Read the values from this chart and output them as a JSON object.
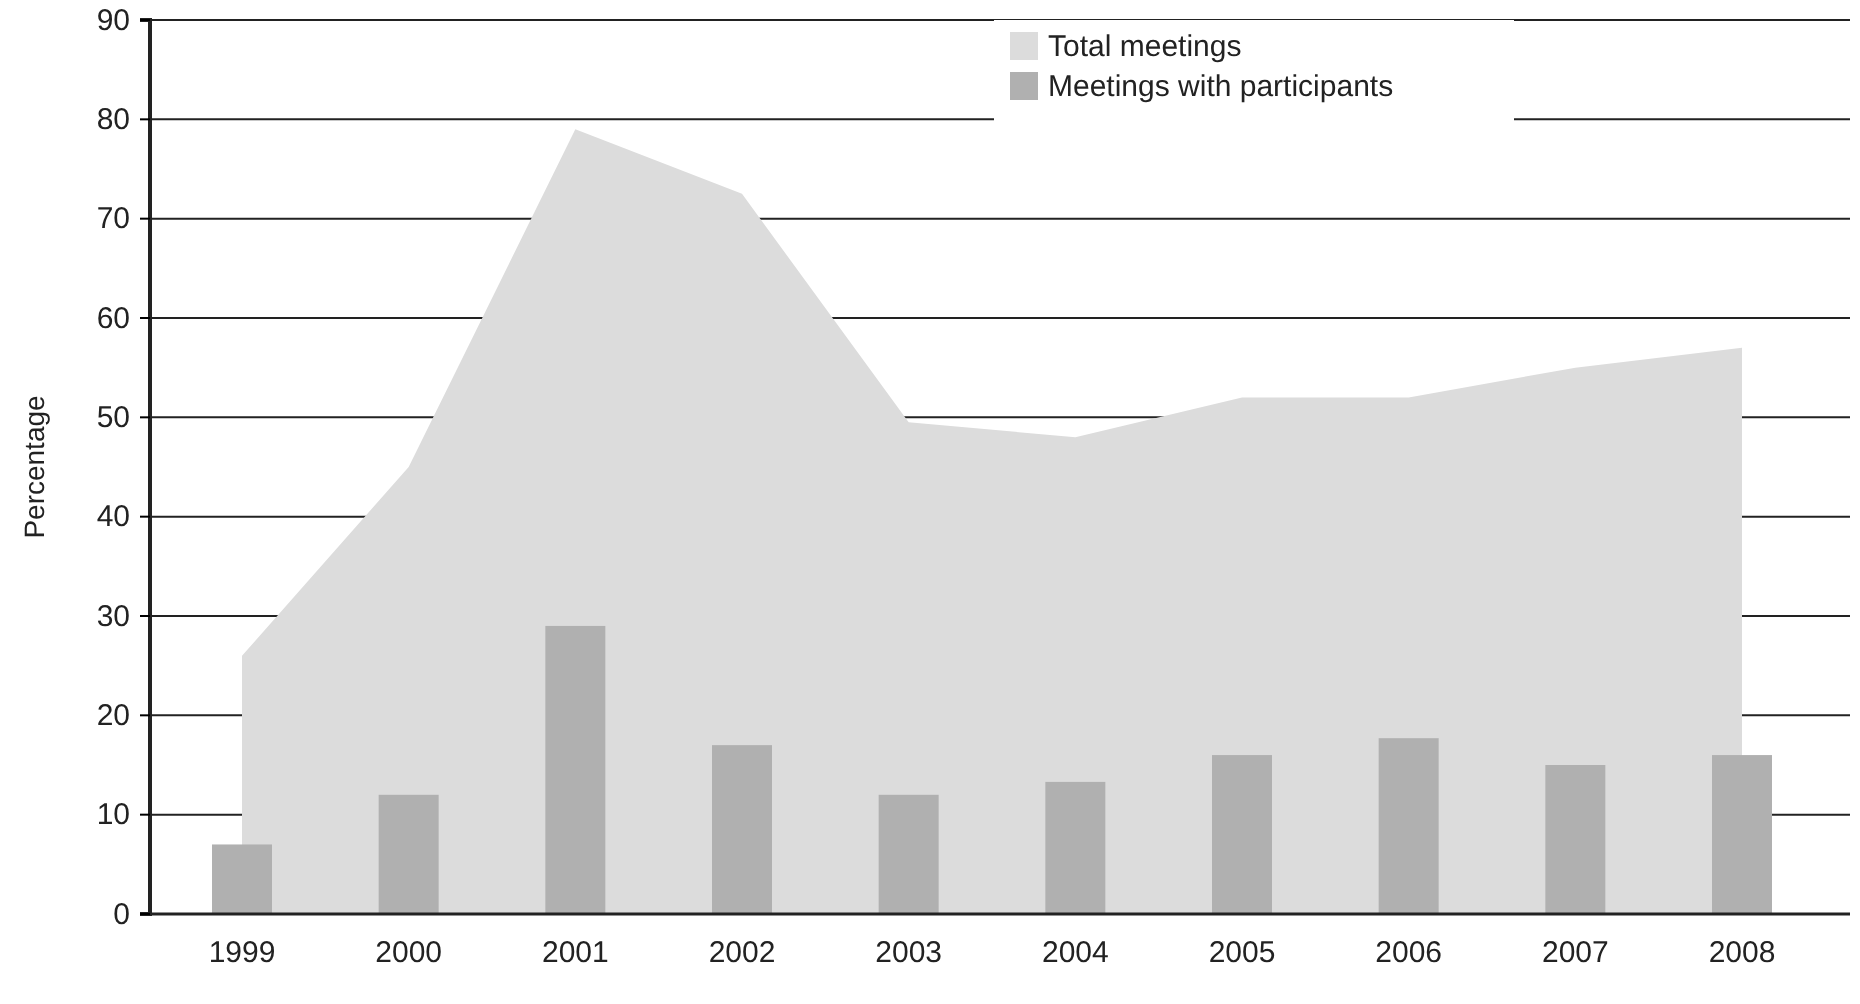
{
  "chart_data": {
    "type": "bar",
    "ylabel": "Percentage",
    "categories": [
      "1999",
      "2000",
      "2001",
      "2002",
      "2003",
      "2004",
      "2005",
      "2006",
      "2007",
      "2008"
    ],
    "series": [
      {
        "name": "Total meetings",
        "type": "area",
        "color": "#dcdcdc",
        "values": [
          26,
          45,
          79,
          72.5,
          49.5,
          48,
          52,
          52,
          55,
          57
        ]
      },
      {
        "name": "Meetings with participants",
        "color": "#b0b0b0",
        "values": [
          7,
          12,
          29,
          17,
          12,
          13.3,
          16,
          17.7,
          15,
          16
        ]
      }
    ],
    "ylim": [
      0,
      90
    ],
    "yticks": [
      0,
      10,
      20,
      30,
      40,
      50,
      60,
      70,
      80,
      90
    ],
    "grid": "y",
    "legend": "top"
  }
}
